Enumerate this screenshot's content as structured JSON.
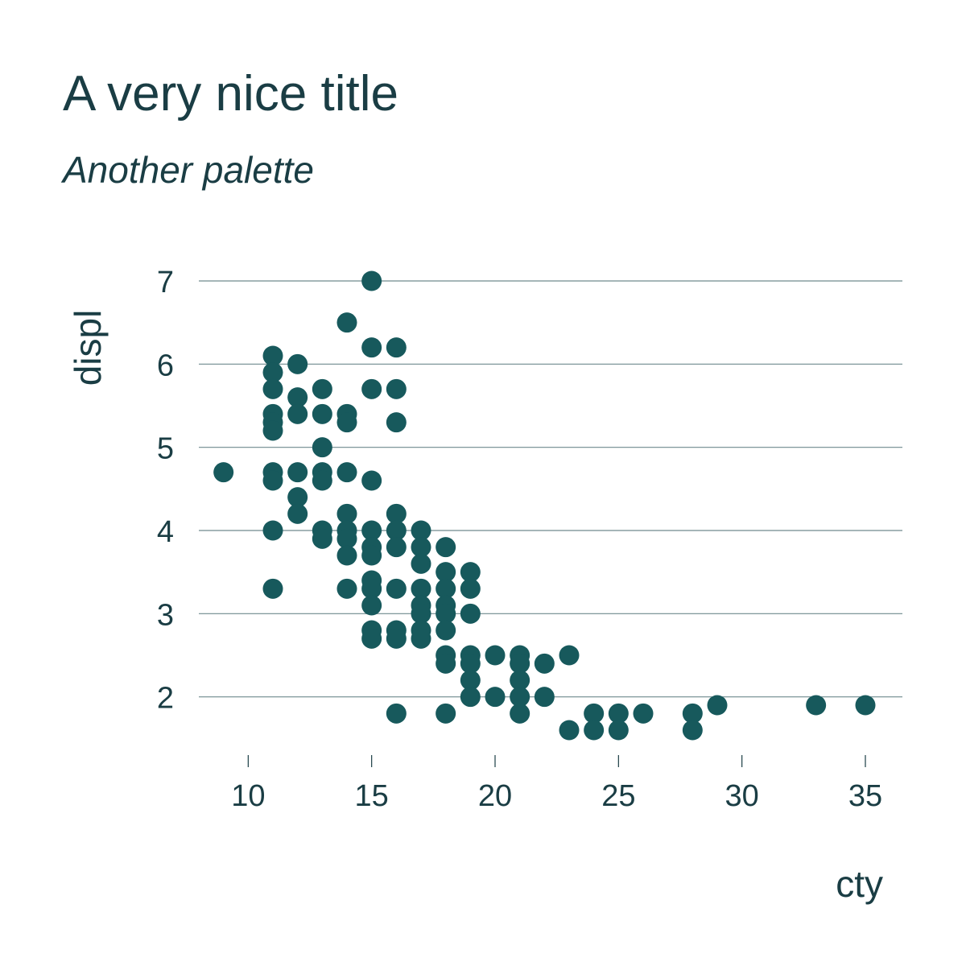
{
  "chart_data": {
    "type": "scatter",
    "title": "A very nice title",
    "subtitle": "Another palette",
    "xlabel": "cty",
    "ylabel": "displ",
    "xlim": [
      8,
      36.5
    ],
    "ylim": [
      1.3,
      7.3
    ],
    "xticks": [
      10,
      15,
      20,
      25,
      30,
      35
    ],
    "yticks": [
      2,
      3,
      4,
      5,
      6,
      7
    ],
    "grid": "horizontal-major",
    "point_color": "#17595c",
    "text_color": "#1a3d44",
    "points": [
      [
        9,
        4.7
      ],
      [
        11,
        6.1
      ],
      [
        11,
        5.9
      ],
      [
        11,
        5.7
      ],
      [
        11,
        5.4
      ],
      [
        11,
        5.3
      ],
      [
        11,
        5.2
      ],
      [
        11,
        4.7
      ],
      [
        11,
        4.6
      ],
      [
        11,
        4.0
      ],
      [
        11,
        3.3
      ],
      [
        12,
        6.0
      ],
      [
        12,
        5.6
      ],
      [
        12,
        5.4
      ],
      [
        12,
        4.7
      ],
      [
        12,
        4.4
      ],
      [
        12,
        4.2
      ],
      [
        13,
        5.7
      ],
      [
        13,
        5.4
      ],
      [
        13,
        5.0
      ],
      [
        13,
        4.7
      ],
      [
        13,
        4.6
      ],
      [
        13,
        4.0
      ],
      [
        13,
        3.9
      ],
      [
        14,
        6.5
      ],
      [
        14,
        5.4
      ],
      [
        14,
        5.3
      ],
      [
        14,
        4.7
      ],
      [
        14,
        4.2
      ],
      [
        14,
        4.0
      ],
      [
        14,
        3.9
      ],
      [
        14,
        3.7
      ],
      [
        14,
        3.3
      ],
      [
        15,
        7.0
      ],
      [
        15,
        6.2
      ],
      [
        15,
        5.7
      ],
      [
        15,
        4.6
      ],
      [
        15,
        4.0
      ],
      [
        15,
        3.8
      ],
      [
        15,
        3.7
      ],
      [
        15,
        3.4
      ],
      [
        15,
        3.3
      ],
      [
        15,
        3.1
      ],
      [
        15,
        2.8
      ],
      [
        15,
        2.7
      ],
      [
        16,
        6.2
      ],
      [
        16,
        5.7
      ],
      [
        16,
        5.3
      ],
      [
        16,
        4.2
      ],
      [
        16,
        4.0
      ],
      [
        16,
        3.8
      ],
      [
        16,
        3.3
      ],
      [
        16,
        2.8
      ],
      [
        16,
        2.7
      ],
      [
        16,
        1.8
      ],
      [
        17,
        4.0
      ],
      [
        17,
        3.8
      ],
      [
        17,
        3.6
      ],
      [
        17,
        3.3
      ],
      [
        17,
        3.1
      ],
      [
        17,
        3.0
      ],
      [
        17,
        2.8
      ],
      [
        17,
        2.7
      ],
      [
        18,
        3.8
      ],
      [
        18,
        3.5
      ],
      [
        18,
        3.3
      ],
      [
        18,
        3.1
      ],
      [
        18,
        3.0
      ],
      [
        18,
        2.8
      ],
      [
        18,
        2.5
      ],
      [
        18,
        2.4
      ],
      [
        18,
        1.8
      ],
      [
        19,
        3.5
      ],
      [
        19,
        3.3
      ],
      [
        19,
        3.0
      ],
      [
        19,
        2.5
      ],
      [
        19,
        2.4
      ],
      [
        19,
        2.2
      ],
      [
        19,
        2.0
      ],
      [
        20,
        2.5
      ],
      [
        20,
        2.0
      ],
      [
        21,
        2.5
      ],
      [
        21,
        2.4
      ],
      [
        21,
        2.2
      ],
      [
        21,
        2.0
      ],
      [
        21,
        1.8
      ],
      [
        22,
        2.4
      ],
      [
        22,
        2.0
      ],
      [
        23,
        2.5
      ],
      [
        23,
        1.6
      ],
      [
        24,
        1.8
      ],
      [
        24,
        1.6
      ],
      [
        25,
        1.8
      ],
      [
        25,
        1.6
      ],
      [
        26,
        1.8
      ],
      [
        28,
        1.8
      ],
      [
        28,
        1.6
      ],
      [
        29,
        1.9
      ],
      [
        33,
        1.9
      ],
      [
        35,
        1.9
      ]
    ]
  }
}
